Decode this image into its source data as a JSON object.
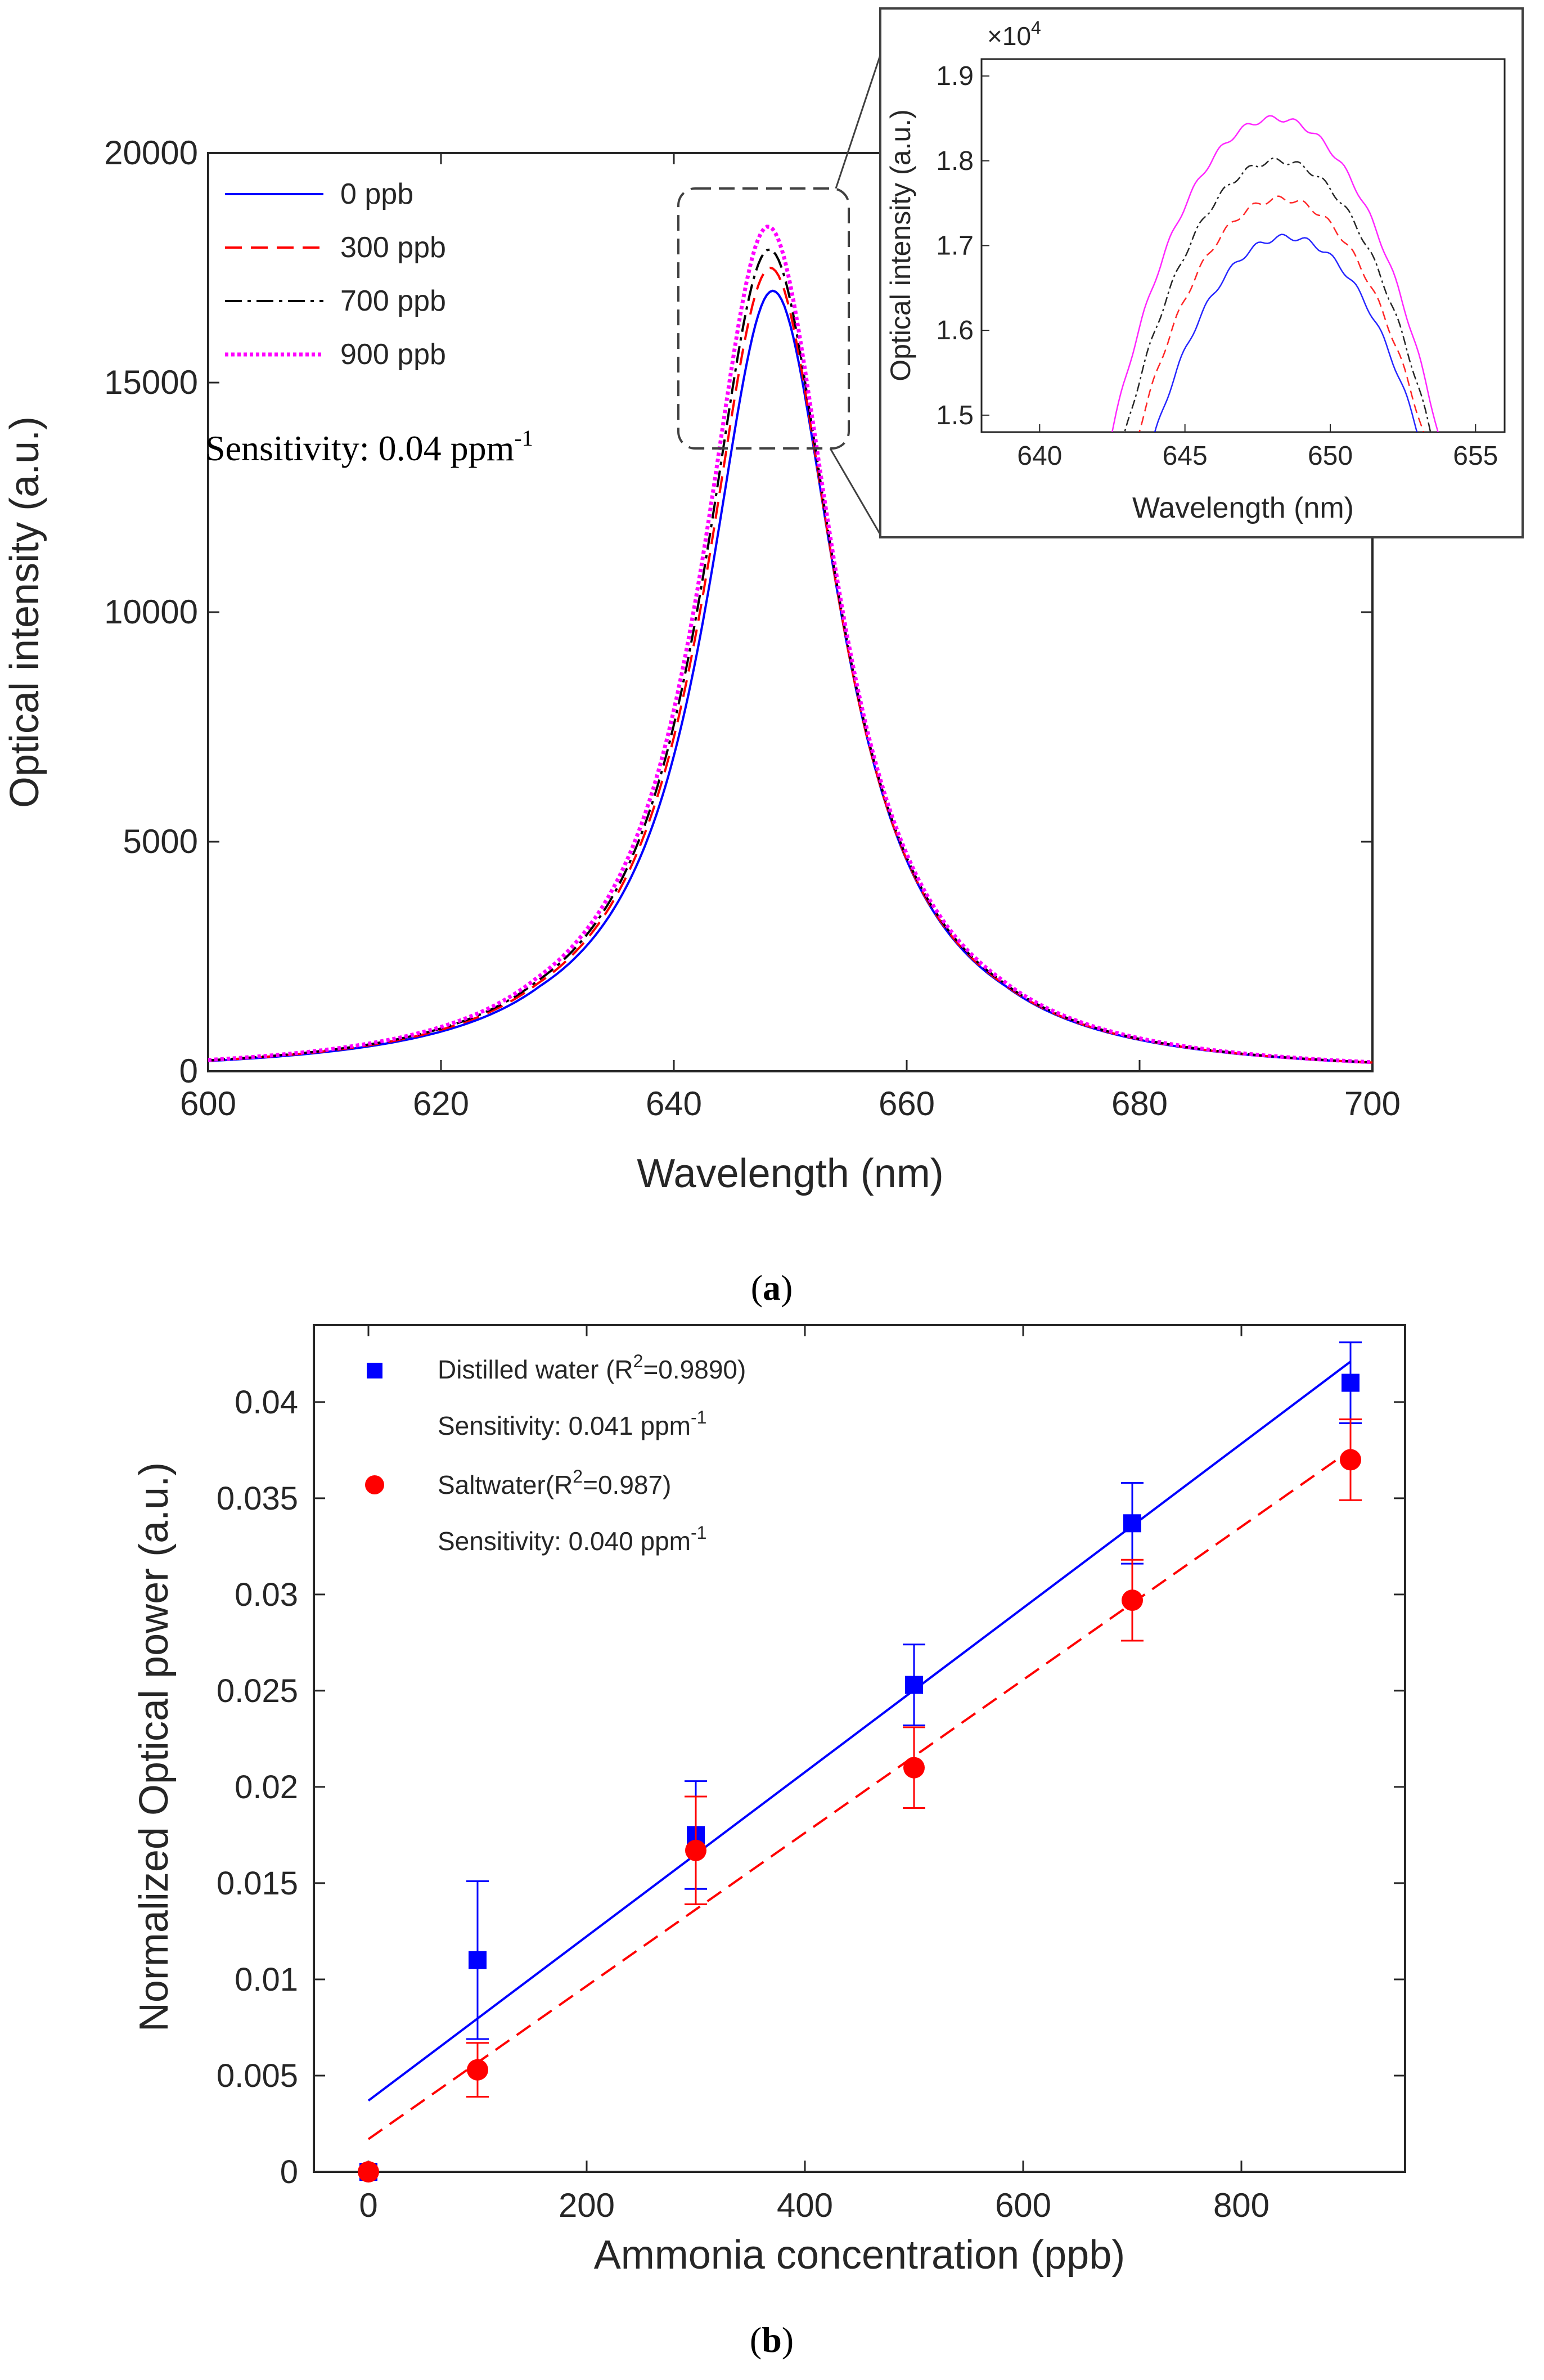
{
  "chart_data": [
    {
      "id": "a",
      "type": "line",
      "xlabel": "Wavelength (nm)",
      "ylabel": "Optical intensity (a.u.)",
      "xlim": [
        600,
        700
      ],
      "ylim": [
        0,
        20000
      ],
      "xticks": [
        600,
        620,
        640,
        660,
        680,
        700
      ],
      "yticks": [
        0,
        5000,
        10000,
        15000,
        20000
      ],
      "annotation": "Sensitivity: 0.04 ppm",
      "annotation_sup": "-1",
      "caption": "a",
      "series": [
        {
          "name": "0 ppb",
          "color": "#0000ff",
          "dash": "solid",
          "peak": 17000,
          "center": 648.5
        },
        {
          "name": "300 ppb",
          "color": "#ff0000",
          "dash": "dashed",
          "peak": 17500,
          "center": 648.3
        },
        {
          "name": "700 ppb",
          "color": "#000000",
          "dash": "dashdot",
          "peak": 17900,
          "center": 648.2
        },
        {
          "name": "900 ppb",
          "color": "#ff00ff",
          "dash": "dotted",
          "peak": 18400,
          "center": 648.1
        }
      ],
      "inset": {
        "xlabel": "Wavelength (nm)",
        "ylabel": "Optical intensity (a.u.)",
        "xlim": [
          638,
          656
        ],
        "ylim": [
          1.48,
          1.92
        ],
        "xticks": [
          640,
          645,
          650,
          655
        ],
        "yticks": [
          "1.5",
          "1.6",
          "1.7",
          "1.8",
          "1.9"
        ],
        "ytick_values": [
          1.5,
          1.6,
          1.7,
          1.8,
          1.9
        ],
        "multiplier": "×10",
        "multiplier_exp": "4",
        "series_peaks": [
          1.71,
          1.755,
          1.8,
          1.85
        ]
      }
    },
    {
      "id": "b",
      "type": "scatter",
      "xlabel": "Ammonia concentration (ppb)",
      "ylabel": "Normalized Optical power (a.u.)",
      "xlim": [
        -50,
        950
      ],
      "ylim": [
        0,
        0.044
      ],
      "xticks": [
        0,
        200,
        400,
        600,
        800
      ],
      "yticks": [
        "0",
        "0.005",
        "0.01",
        "0.015",
        "0.02",
        "0.025",
        "0.03",
        "0.035",
        "0.04"
      ],
      "ytick_values": [
        0,
        0.005,
        0.01,
        0.015,
        0.02,
        0.025,
        0.03,
        0.035,
        0.04
      ],
      "caption": "b",
      "series": [
        {
          "name": "Distilled water (R",
          "name_sup": "2",
          "name_tail": "=0.9890)",
          "sensitivity": "Sensitivity: 0.041 ppm",
          "sensitivity_sup": "-1",
          "color": "#0000ff",
          "marker": "square",
          "x": [
            0,
            100,
            300,
            500,
            700,
            900
          ],
          "y": [
            0,
            0.011,
            0.0175,
            0.0253,
            0.0337,
            0.041
          ],
          "err": [
            0,
            0.0041,
            0.0028,
            0.0021,
            0.0021,
            0.0021
          ],
          "fit": {
            "x": [
              0,
              900
            ],
            "y": [
              0.0037,
              0.0421
            ],
            "dash": "solid"
          }
        },
        {
          "name": "Saltwater(R",
          "name_sup": "2",
          "name_tail": "=0.987)",
          "sensitivity": "Sensitivity: 0.040 ppm",
          "sensitivity_sup": "-1",
          "color": "#ff0000",
          "marker": "circle",
          "x": [
            0,
            100,
            300,
            500,
            700,
            900
          ],
          "y": [
            0,
            0.0053,
            0.0167,
            0.021,
            0.0297,
            0.037
          ],
          "err": [
            0,
            0.0014,
            0.0028,
            0.0021,
            0.0021,
            0.0021
          ],
          "fit": {
            "x": [
              0,
              900
            ],
            "y": [
              0.0017,
              0.0375
            ],
            "dash": "dashed"
          }
        }
      ]
    }
  ]
}
